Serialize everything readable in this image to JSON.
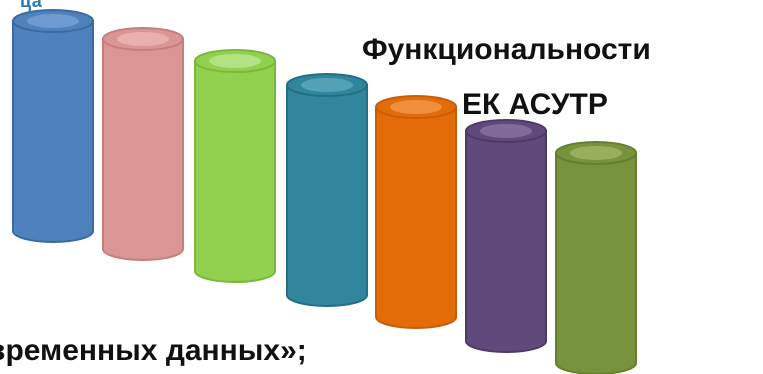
{
  "slide": {
    "corner_fragment": "ца",
    "title_line1": "Функциональности",
    "title_line2": "ЕК АСУТР",
    "bottom_fragment": "временных данных»;"
  },
  "cylinders": [
    {
      "name": "cylinder-blue",
      "color": "#4f81bd",
      "dark": "#3a6aa2",
      "top": "#6f9cd3"
    },
    {
      "name": "cylinder-pink",
      "color": "#d99694",
      "dark": "#c57e7b",
      "top": "#eab2b0"
    },
    {
      "name": "cylinder-green",
      "color": "#92d050",
      "dark": "#7cb83d",
      "top": "#b6e388"
    },
    {
      "name": "cylinder-teal",
      "color": "#31859c",
      "dark": "#236f84",
      "top": "#5aa5ba"
    },
    {
      "name": "cylinder-orange",
      "color": "#e36c09",
      "dark": "#c95c05",
      "top": "#f19546"
    },
    {
      "name": "cylinder-purple",
      "color": "#604a7b",
      "dark": "#4e3a66",
      "top": "#84709c"
    },
    {
      "name": "cylinder-olive",
      "color": "#77933c",
      "dark": "#64802d",
      "top": "#9ab362"
    }
  ]
}
